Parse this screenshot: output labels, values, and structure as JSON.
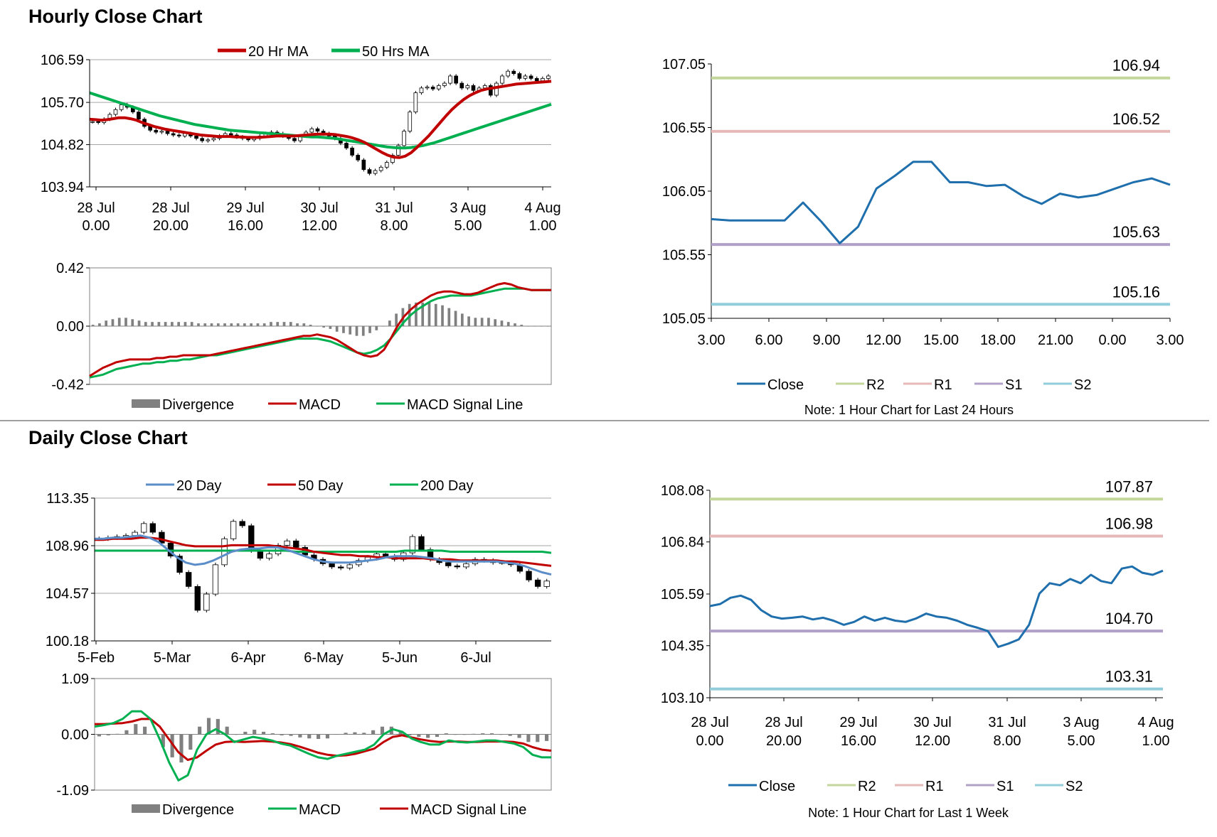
{
  "sections": {
    "hourly_title": "Hourly Close Chart",
    "daily_title": "Daily Close Chart"
  },
  "colors": {
    "ma_red": "#c00000",
    "ma_green": "#00b050",
    "ma_blue": "#5b8dc9",
    "close_blue": "#1f6fad",
    "r2": "#c4d79b",
    "r1": "#e6b8b7",
    "s1": "#b1a0c7",
    "s2": "#92cddc",
    "divergence": "#808080",
    "grid": "#a6a6a6"
  },
  "chart_data": [
    {
      "id": "hourly_price",
      "type": "candlestick",
      "y_ticks": [
        "106.59",
        "105.70",
        "104.82",
        "103.94"
      ],
      "ylim": [
        103.94,
        106.59
      ],
      "x_ticks": [
        [
          "28 Jul",
          "0.00"
        ],
        [
          "28 Jul",
          "20.00"
        ],
        [
          "29 Jul",
          "16.00"
        ],
        [
          "30 Jul",
          "12.00"
        ],
        [
          "31 Jul",
          "8.00"
        ],
        [
          "3 Aug",
          "5.00"
        ],
        [
          "4 Aug",
          "1.00"
        ]
      ],
      "legend": [
        "20 Hr MA",
        "50 Hrs MA"
      ],
      "closes": [
        105.3,
        105.28,
        105.35,
        105.45,
        105.55,
        105.65,
        105.6,
        105.5,
        105.35,
        105.2,
        105.12,
        105.08,
        105.1,
        105.05,
        105.02,
        105.0,
        105.05,
        105.0,
        104.95,
        104.9,
        104.92,
        104.95,
        105.0,
        105.05,
        105.02,
        104.98,
        104.95,
        104.92,
        104.95,
        105.0,
        105.05,
        105.08,
        105.05,
        105.0,
        104.95,
        104.9,
        105.0,
        105.08,
        105.15,
        105.1,
        105.05,
        105.0,
        104.95,
        104.85,
        104.75,
        104.6,
        104.5,
        104.3,
        104.22,
        104.28,
        104.35,
        104.45,
        104.6,
        104.8,
        105.1,
        105.5,
        105.9,
        106.0,
        106.02,
        105.98,
        106.05,
        106.1,
        106.25,
        106.1,
        106.0,
        106.05,
        105.95,
        106.0,
        106.05,
        105.85,
        106.1,
        106.25,
        106.35,
        106.3,
        106.2,
        106.25,
        106.2,
        106.15,
        106.2,
        106.25
      ],
      "ma20": [
        105.35,
        105.34,
        105.33,
        105.34,
        105.36,
        105.38,
        105.38,
        105.36,
        105.33,
        105.28,
        105.24,
        105.2,
        105.17,
        105.14,
        105.12,
        105.1,
        105.08,
        105.06,
        105.04,
        105.02,
        105.01,
        105.0,
        104.99,
        104.99,
        104.99,
        104.98,
        104.98,
        104.97,
        104.97,
        104.97,
        104.98,
        104.99,
        105.0,
        105.0,
        105.0,
        105.0,
        105.01,
        105.02,
        105.03,
        105.04,
        105.04,
        105.04,
        105.03,
        105.01,
        104.99,
        104.96,
        104.92,
        104.87,
        104.8,
        104.73,
        104.66,
        104.6,
        104.56,
        104.55,
        104.58,
        104.65,
        104.76,
        104.88,
        105.0,
        105.14,
        105.28,
        105.42,
        105.55,
        105.66,
        105.76,
        105.84,
        105.9,
        105.95,
        105.98,
        106.0,
        106.02,
        106.04,
        106.06,
        106.08,
        106.09,
        106.1,
        106.11,
        106.12,
        106.13,
        106.14
      ],
      "ma50": [
        105.9,
        105.86,
        105.82,
        105.78,
        105.74,
        105.7,
        105.66,
        105.62,
        105.58,
        105.54,
        105.5,
        105.46,
        105.42,
        105.39,
        105.36,
        105.33,
        105.3,
        105.27,
        105.24,
        105.22,
        105.2,
        105.18,
        105.16,
        105.14,
        105.12,
        105.11,
        105.1,
        105.09,
        105.08,
        105.07,
        105.06,
        105.05,
        105.04,
        105.03,
        105.02,
        105.01,
        105.0,
        104.99,
        104.98,
        104.98,
        104.97,
        104.96,
        104.95,
        104.93,
        104.91,
        104.89,
        104.87,
        104.85,
        104.83,
        104.81,
        104.79,
        104.77,
        104.76,
        104.75,
        104.75,
        104.76,
        104.78,
        104.8,
        104.83,
        104.86,
        104.9,
        104.94,
        104.98,
        105.02,
        105.06,
        105.1,
        105.14,
        105.18,
        105.22,
        105.26,
        105.3,
        105.34,
        105.38,
        105.42,
        105.46,
        105.5,
        105.54,
        105.58,
        105.62,
        105.66
      ]
    },
    {
      "id": "hourly_macd",
      "type": "macd",
      "y_ticks": [
        "0.42",
        "0.00",
        "-0.42"
      ],
      "ylim": [
        -0.42,
        0.42
      ],
      "legend": [
        "Divergence",
        "MACD",
        "MACD Signal Line"
      ],
      "macd": [
        -0.36,
        -0.33,
        -0.3,
        -0.28,
        -0.26,
        -0.25,
        -0.24,
        -0.24,
        -0.24,
        -0.24,
        -0.23,
        -0.23,
        -0.22,
        -0.22,
        -0.21,
        -0.21,
        -0.21,
        -0.21,
        -0.21,
        -0.2,
        -0.19,
        -0.18,
        -0.17,
        -0.16,
        -0.15,
        -0.14,
        -0.13,
        -0.12,
        -0.11,
        -0.1,
        -0.09,
        -0.08,
        -0.07,
        -0.07,
        -0.06,
        -0.07,
        -0.08,
        -0.1,
        -0.13,
        -0.16,
        -0.19,
        -0.21,
        -0.22,
        -0.21,
        -0.17,
        -0.09,
        0.0,
        0.07,
        0.12,
        0.16,
        0.19,
        0.22,
        0.24,
        0.25,
        0.25,
        0.24,
        0.23,
        0.23,
        0.24,
        0.26,
        0.28,
        0.3,
        0.31,
        0.3,
        0.28,
        0.27,
        0.26,
        0.26,
        0.26,
        0.26
      ],
      "signal": [
        -0.37,
        -0.36,
        -0.35,
        -0.33,
        -0.31,
        -0.3,
        -0.29,
        -0.28,
        -0.27,
        -0.27,
        -0.26,
        -0.26,
        -0.25,
        -0.25,
        -0.24,
        -0.24,
        -0.23,
        -0.22,
        -0.21,
        -0.21,
        -0.2,
        -0.19,
        -0.18,
        -0.17,
        -0.16,
        -0.15,
        -0.14,
        -0.13,
        -0.12,
        -0.11,
        -0.1,
        -0.09,
        -0.09,
        -0.09,
        -0.09,
        -0.1,
        -0.11,
        -0.13,
        -0.15,
        -0.17,
        -0.19,
        -0.2,
        -0.19,
        -0.17,
        -0.14,
        -0.09,
        -0.03,
        0.03,
        0.08,
        0.12,
        0.15,
        0.18,
        0.2,
        0.21,
        0.22,
        0.22,
        0.22,
        0.22,
        0.23,
        0.24,
        0.25,
        0.26,
        0.27,
        0.27,
        0.27,
        0.27,
        0.26,
        0.26,
        0.26,
        0.26
      ],
      "divergence": [
        0.01,
        0.02,
        0.04,
        0.05,
        0.06,
        0.06,
        0.05,
        0.04,
        0.03,
        0.03,
        0.03,
        0.03,
        0.03,
        0.03,
        0.03,
        0.03,
        0.02,
        0.02,
        0.02,
        0.02,
        0.02,
        0.02,
        0.02,
        0.02,
        0.02,
        0.02,
        0.02,
        0.03,
        0.03,
        0.03,
        0.03,
        0.02,
        0.02,
        0.01,
        0.0,
        -0.01,
        -0.02,
        -0.04,
        -0.05,
        -0.06,
        -0.07,
        -0.07,
        -0.05,
        -0.03,
        0.0,
        0.04,
        0.09,
        0.13,
        0.16,
        0.17,
        0.17,
        0.17,
        0.16,
        0.15,
        0.13,
        0.11,
        0.09,
        0.07,
        0.06,
        0.06,
        0.06,
        0.05,
        0.04,
        0.03,
        0.02,
        0.01,
        0.0,
        0.0,
        0.0,
        0.0
      ]
    },
    {
      "id": "hourly_levels",
      "type": "line",
      "y_ticks": [
        "107.05",
        "106.55",
        "106.05",
        "105.55",
        "105.05"
      ],
      "ylim": [
        105.05,
        107.05
      ],
      "x_ticks": [
        "3.00",
        "6.00",
        "9.00",
        "12.00",
        "15.00",
        "18.00",
        "21.00",
        "0.00",
        "3.00"
      ],
      "close": [
        105.83,
        105.82,
        105.82,
        105.82,
        105.82,
        105.96,
        105.81,
        105.64,
        105.77,
        106.07,
        106.17,
        106.28,
        106.28,
        106.12,
        106.12,
        106.09,
        106.1,
        106.01,
        105.95,
        106.03,
        106.0,
        106.02,
        106.07,
        106.12,
        106.15,
        106.1
      ],
      "levels": {
        "R2": 106.94,
        "R1": 106.52,
        "S1": 105.63,
        "S2": 105.16
      },
      "level_labels": {
        "R2": "106.94",
        "R1": "106.52",
        "S1": "105.63",
        "S2": "105.16"
      },
      "legend": [
        "Close",
        "R2",
        "R1",
        "S1",
        "S2"
      ],
      "note": "Note: 1 Hour Chart for Last 24 Hours"
    },
    {
      "id": "daily_price",
      "type": "candlestick",
      "y_ticks": [
        "113.35",
        "108.96",
        "104.57",
        "100.18"
      ],
      "ylim": [
        100.18,
        113.35
      ],
      "x_ticks": [
        "5-Feb",
        "5-Mar",
        "6-Apr",
        "6-May",
        "5-Jun",
        "6-Jul"
      ],
      "legend": [
        "20 Day",
        "50 Day",
        "200 Day"
      ],
      "closes": [
        109.6,
        109.7,
        109.8,
        109.9,
        110.2,
        111.0,
        110.2,
        109.2,
        108.0,
        106.5,
        105.2,
        103.0,
        104.5,
        107.2,
        109.6,
        111.2,
        110.8,
        108.5,
        107.8,
        108.2,
        109.0,
        109.4,
        108.8,
        108.1,
        107.7,
        107.3,
        107.0,
        106.9,
        107.2,
        107.6,
        107.9,
        108.2,
        108.0,
        107.7,
        108.3,
        109.8,
        108.6,
        107.7,
        107.4,
        107.1,
        107.0,
        107.3,
        107.7,
        107.6,
        107.4,
        107.4,
        107.2,
        106.6,
        105.8,
        105.2,
        105.7
      ],
      "ma20": [
        109.6,
        109.6,
        109.7,
        109.7,
        109.8,
        109.9,
        109.7,
        109.3,
        108.6,
        107.9,
        107.4,
        107.2,
        107.3,
        107.6,
        108.0,
        108.4,
        108.6,
        108.7,
        108.7,
        108.8,
        108.8,
        108.6,
        108.3,
        108.0,
        107.7,
        107.5,
        107.4,
        107.4,
        107.4,
        107.5,
        107.6,
        107.7,
        107.9,
        108.0,
        108.0,
        108.0,
        107.9,
        107.8,
        107.6,
        107.5,
        107.5,
        107.5,
        107.5,
        107.5,
        107.5,
        107.4,
        107.3,
        107.1,
        106.8,
        106.5,
        106.3
      ],
      "ma50": [
        109.5,
        109.5,
        109.6,
        109.6,
        109.6,
        109.7,
        109.7,
        109.6,
        109.4,
        109.2,
        109.0,
        108.9,
        108.9,
        108.9,
        108.9,
        109.0,
        109.0,
        109.0,
        109.0,
        109.0,
        108.9,
        108.8,
        108.7,
        108.6,
        108.4,
        108.3,
        108.2,
        108.1,
        108.1,
        108.0,
        108.0,
        107.9,
        107.9,
        107.8,
        107.8,
        107.8,
        107.8,
        107.7,
        107.7,
        107.7,
        107.6,
        107.6,
        107.6,
        107.6,
        107.6,
        107.5,
        107.5,
        107.4,
        107.3,
        107.2,
        107.1
      ],
      "ma200": [
        108.5,
        108.5,
        108.5,
        108.5,
        108.5,
        108.5,
        108.5,
        108.5,
        108.5,
        108.5,
        108.5,
        108.5,
        108.5,
        108.5,
        108.5,
        108.5,
        108.5,
        108.5,
        108.5,
        108.5,
        108.5,
        108.5,
        108.4,
        108.4,
        108.4,
        108.4,
        108.4,
        108.4,
        108.4,
        108.4,
        108.4,
        108.4,
        108.4,
        108.4,
        108.5,
        108.5,
        108.5,
        108.5,
        108.5,
        108.4,
        108.4,
        108.4,
        108.4,
        108.4,
        108.4,
        108.4,
        108.4,
        108.4,
        108.4,
        108.4,
        108.3
      ]
    },
    {
      "id": "daily_macd",
      "type": "macd",
      "y_ticks": [
        "1.09",
        "0.00",
        "-1.09"
      ],
      "ylim": [
        -1.09,
        1.09
      ],
      "legend": [
        "Divergence",
        "MACD",
        "MACD Signal Line"
      ],
      "macd": [
        0.15,
        0.18,
        0.22,
        0.3,
        0.45,
        0.45,
        0.3,
        -0.1,
        -0.55,
        -0.9,
        -0.8,
        -0.3,
        0.0,
        0.1,
        0.0,
        -0.15,
        -0.1,
        -0.05,
        -0.08,
        -0.12,
        -0.18,
        -0.22,
        -0.3,
        -0.38,
        -0.45,
        -0.48,
        -0.42,
        -0.38,
        -0.34,
        -0.3,
        -0.2,
        0.0,
        0.1,
        0.05,
        -0.08,
        -0.15,
        -0.2,
        -0.2,
        -0.12,
        -0.15,
        -0.16,
        -0.14,
        -0.12,
        -0.12,
        -0.15,
        -0.18,
        -0.25,
        -0.4,
        -0.45,
        -0.45
      ],
      "signal": [
        0.2,
        0.2,
        0.21,
        0.22,
        0.25,
        0.3,
        0.3,
        0.15,
        -0.1,
        -0.35,
        -0.5,
        -0.45,
        -0.32,
        -0.2,
        -0.15,
        -0.14,
        -0.15,
        -0.14,
        -0.13,
        -0.14,
        -0.16,
        -0.19,
        -0.24,
        -0.3,
        -0.36,
        -0.4,
        -0.42,
        -0.41,
        -0.38,
        -0.33,
        -0.28,
        -0.15,
        -0.05,
        -0.02,
        -0.06,
        -0.1,
        -0.13,
        -0.15,
        -0.14,
        -0.14,
        -0.15,
        -0.15,
        -0.14,
        -0.14,
        -0.14,
        -0.15,
        -0.18,
        -0.25,
        -0.3,
        -0.32
      ],
      "divergence": [
        -0.04,
        -0.02,
        0.01,
        0.08,
        0.2,
        0.15,
        0.0,
        -0.25,
        -0.45,
        -0.55,
        -0.3,
        0.15,
        0.32,
        0.3,
        0.15,
        -0.01,
        0.05,
        0.09,
        0.05,
        0.02,
        -0.02,
        -0.03,
        -0.06,
        -0.08,
        -0.09,
        -0.08,
        0.0,
        0.03,
        0.04,
        0.03,
        0.08,
        0.15,
        0.15,
        0.07,
        -0.02,
        -0.05,
        -0.07,
        -0.05,
        0.02,
        -0.01,
        -0.01,
        0.01,
        0.02,
        0.02,
        -0.01,
        -0.03,
        -0.07,
        -0.15,
        -0.15,
        -0.13
      ]
    },
    {
      "id": "weekly_levels",
      "type": "line",
      "y_ticks": [
        "108.08",
        "106.84",
        "105.59",
        "104.35",
        "103.10"
      ],
      "ylim": [
        103.1,
        108.08
      ],
      "x_ticks": [
        [
          "28 Jul",
          "0.00"
        ],
        [
          "28 Jul",
          "20.00"
        ],
        [
          "29 Jul",
          "16.00"
        ],
        [
          "30 Jul",
          "12.00"
        ],
        [
          "31 Jul",
          "8.00"
        ],
        [
          "3 Aug",
          "5.00"
        ],
        [
          "4 Aug",
          "1.00"
        ]
      ],
      "close": [
        105.3,
        105.35,
        105.5,
        105.55,
        105.45,
        105.2,
        105.05,
        105.0,
        105.02,
        105.05,
        104.98,
        105.02,
        104.95,
        104.85,
        104.92,
        105.05,
        104.95,
        105.02,
        104.95,
        104.92,
        105.0,
        105.12,
        105.05,
        105.02,
        104.95,
        104.85,
        104.78,
        104.7,
        104.32,
        104.4,
        104.5,
        104.85,
        105.6,
        105.85,
        105.8,
        105.95,
        105.85,
        106.05,
        105.9,
        105.85,
        106.2,
        106.25,
        106.1,
        106.05,
        106.15
      ],
      "levels": {
        "R2": 107.87,
        "R1": 106.98,
        "S1": 104.7,
        "S2": 103.31
      },
      "level_labels": {
        "R2": "107.87",
        "R1": "106.98",
        "S1": "104.70",
        "S2": "103.31"
      },
      "legend": [
        "Close",
        "R2",
        "R1",
        "S1",
        "S2"
      ],
      "note": "Note: 1 Hour Chart for Last 1 Week"
    }
  ]
}
